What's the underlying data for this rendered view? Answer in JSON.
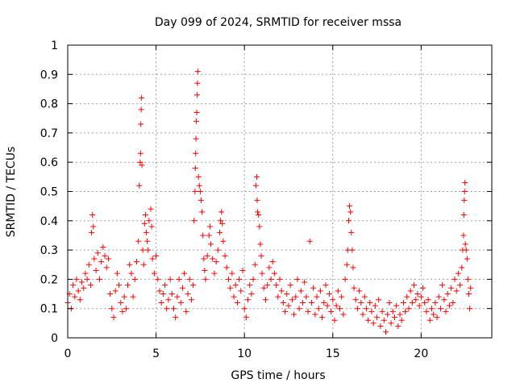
{
  "chart_data": {
    "type": "scatter",
    "title": "Day 099 of 2024, SRMTID for receiver mssa",
    "xlabel": "GPS time / hours",
    "ylabel": "SRMTID / TECUs",
    "xlim": [
      0,
      24
    ],
    "ylim": [
      0,
      1
    ],
    "xticks": [
      0,
      5,
      10,
      15,
      20
    ],
    "xtick_labels": [
      "0",
      "5",
      "10",
      "15",
      "20"
    ],
    "yticks": [
      0,
      0.1,
      0.2,
      0.3,
      0.4,
      0.5,
      0.6,
      0.7,
      0.8,
      0.9,
      1
    ],
    "ytick_labels": [
      "0",
      "0.1",
      "0.2",
      "0.3",
      "0.4",
      "0.5",
      "0.6",
      "0.7",
      "0.8",
      "0.9",
      "1"
    ],
    "grid": true,
    "marker": "+",
    "color": "#ff0000",
    "series": [
      {
        "name": "SRMTID",
        "points": [
          [
            0.0,
            0.12
          ],
          [
            0.1,
            0.15
          ],
          [
            0.2,
            0.1
          ],
          [
            0.3,
            0.18
          ],
          [
            0.4,
            0.14
          ],
          [
            0.5,
            0.2
          ],
          [
            0.6,
            0.16
          ],
          [
            0.7,
            0.13
          ],
          [
            0.8,
            0.19
          ],
          [
            0.9,
            0.17
          ],
          [
            1.0,
            0.22
          ],
          [
            1.1,
            0.2
          ],
          [
            1.2,
            0.25
          ],
          [
            1.3,
            0.18
          ],
          [
            1.35,
            0.36
          ],
          [
            1.4,
            0.42
          ],
          [
            1.45,
            0.38
          ],
          [
            1.5,
            0.27
          ],
          [
            1.6,
            0.23
          ],
          [
            1.7,
            0.29
          ],
          [
            1.8,
            0.2
          ],
          [
            1.9,
            0.26
          ],
          [
            2.0,
            0.31
          ],
          [
            2.1,
            0.28
          ],
          [
            2.2,
            0.24
          ],
          [
            2.3,
            0.27
          ],
          [
            2.4,
            0.15
          ],
          [
            2.5,
            0.1
          ],
          [
            2.6,
            0.07
          ],
          [
            2.7,
            0.16
          ],
          [
            2.8,
            0.22
          ],
          [
            2.9,
            0.18
          ],
          [
            3.0,
            0.12
          ],
          [
            3.1,
            0.09
          ],
          [
            3.2,
            0.14
          ],
          [
            3.3,
            0.1
          ],
          [
            3.4,
            0.18
          ],
          [
            3.5,
            0.25
          ],
          [
            3.6,
            0.22
          ],
          [
            3.7,
            0.14
          ],
          [
            3.8,
            0.2
          ],
          [
            3.9,
            0.26
          ],
          [
            4.0,
            0.33
          ],
          [
            4.05,
            0.52
          ],
          [
            4.1,
            0.6
          ],
          [
            4.12,
            0.63
          ],
          [
            4.14,
            0.73
          ],
          [
            4.16,
            0.78
          ],
          [
            4.18,
            0.82
          ],
          [
            4.2,
            0.59
          ],
          [
            4.25,
            0.3
          ],
          [
            4.3,
            0.25
          ],
          [
            4.35,
            0.39
          ],
          [
            4.4,
            0.42
          ],
          [
            4.45,
            0.36
          ],
          [
            4.5,
            0.33
          ],
          [
            4.55,
            0.3
          ],
          [
            4.6,
            0.4
          ],
          [
            4.7,
            0.44
          ],
          [
            4.75,
            0.38
          ],
          [
            4.8,
            0.27
          ],
          [
            4.9,
            0.22
          ],
          [
            5.0,
            0.28
          ],
          [
            5.1,
            0.2
          ],
          [
            5.2,
            0.16
          ],
          [
            5.3,
            0.12
          ],
          [
            5.4,
            0.15
          ],
          [
            5.5,
            0.18
          ],
          [
            5.6,
            0.1
          ],
          [
            5.7,
            0.13
          ],
          [
            5.8,
            0.2
          ],
          [
            5.9,
            0.15
          ],
          [
            6.0,
            0.1
          ],
          [
            6.1,
            0.07
          ],
          [
            6.2,
            0.14
          ],
          [
            6.3,
            0.2
          ],
          [
            6.4,
            0.12
          ],
          [
            6.5,
            0.17
          ],
          [
            6.6,
            0.22
          ],
          [
            6.7,
            0.09
          ],
          [
            6.8,
            0.15
          ],
          [
            6.9,
            0.2
          ],
          [
            7.0,
            0.13
          ],
          [
            7.1,
            0.18
          ],
          [
            7.15,
            0.4
          ],
          [
            7.2,
            0.5
          ],
          [
            7.22,
            0.58
          ],
          [
            7.24,
            0.63
          ],
          [
            7.26,
            0.68
          ],
          [
            7.28,
            0.74
          ],
          [
            7.3,
            0.77
          ],
          [
            7.32,
            0.83
          ],
          [
            7.34,
            0.87
          ],
          [
            7.36,
            0.91
          ],
          [
            7.4,
            0.55
          ],
          [
            7.45,
            0.52
          ],
          [
            7.5,
            0.5
          ],
          [
            7.55,
            0.47
          ],
          [
            7.6,
            0.43
          ],
          [
            7.65,
            0.35
          ],
          [
            7.7,
            0.27
          ],
          [
            7.75,
            0.23
          ],
          [
            7.8,
            0.2
          ],
          [
            7.9,
            0.28
          ],
          [
            8.0,
            0.35
          ],
          [
            8.05,
            0.38
          ],
          [
            8.1,
            0.32
          ],
          [
            8.2,
            0.27
          ],
          [
            8.3,
            0.22
          ],
          [
            8.4,
            0.26
          ],
          [
            8.5,
            0.3
          ],
          [
            8.6,
            0.36
          ],
          [
            8.65,
            0.4
          ],
          [
            8.7,
            0.43
          ],
          [
            8.75,
            0.39
          ],
          [
            8.8,
            0.33
          ],
          [
            8.9,
            0.28
          ],
          [
            9.0,
            0.24
          ],
          [
            9.1,
            0.2
          ],
          [
            9.2,
            0.17
          ],
          [
            9.3,
            0.22
          ],
          [
            9.4,
            0.14
          ],
          [
            9.5,
            0.18
          ],
          [
            9.6,
            0.12
          ],
          [
            9.7,
            0.2
          ],
          [
            9.8,
            0.16
          ],
          [
            9.9,
            0.23
          ],
          [
            10.0,
            0.1
          ],
          [
            10.1,
            0.07
          ],
          [
            10.2,
            0.13
          ],
          [
            10.3,
            0.18
          ],
          [
            10.4,
            0.15
          ],
          [
            10.5,
            0.2
          ],
          [
            10.6,
            0.25
          ],
          [
            10.65,
            0.52
          ],
          [
            10.7,
            0.55
          ],
          [
            10.72,
            0.47
          ],
          [
            10.75,
            0.43
          ],
          [
            10.8,
            0.42
          ],
          [
            10.85,
            0.38
          ],
          [
            10.9,
            0.32
          ],
          [
            10.95,
            0.28
          ],
          [
            11.0,
            0.22
          ],
          [
            11.1,
            0.17
          ],
          [
            11.2,
            0.13
          ],
          [
            11.3,
            0.18
          ],
          [
            11.4,
            0.24
          ],
          [
            11.5,
            0.2
          ],
          [
            11.6,
            0.26
          ],
          [
            11.7,
            0.22
          ],
          [
            11.8,
            0.18
          ],
          [
            11.9,
            0.14
          ],
          [
            12.0,
            0.2
          ],
          [
            12.1,
            0.16
          ],
          [
            12.2,
            0.12
          ],
          [
            12.3,
            0.09
          ],
          [
            12.4,
            0.15
          ],
          [
            12.5,
            0.11
          ],
          [
            12.6,
            0.18
          ],
          [
            12.7,
            0.13
          ],
          [
            12.8,
            0.08
          ],
          [
            12.9,
            0.14
          ],
          [
            13.0,
            0.2
          ],
          [
            13.1,
            0.1
          ],
          [
            13.2,
            0.16
          ],
          [
            13.3,
            0.12
          ],
          [
            13.4,
            0.19
          ],
          [
            13.5,
            0.14
          ],
          [
            13.6,
            0.09
          ],
          [
            13.7,
            0.33
          ],
          [
            13.8,
            0.12
          ],
          [
            13.9,
            0.17
          ],
          [
            14.0,
            0.08
          ],
          [
            14.1,
            0.14
          ],
          [
            14.2,
            0.1
          ],
          [
            14.3,
            0.16
          ],
          [
            14.4,
            0.07
          ],
          [
            14.5,
            0.12
          ],
          [
            14.6,
            0.18
          ],
          [
            14.7,
            0.11
          ],
          [
            14.8,
            0.15
          ],
          [
            14.9,
            0.09
          ],
          [
            15.0,
            0.13
          ],
          [
            15.1,
            0.06
          ],
          [
            15.2,
            0.11
          ],
          [
            15.3,
            0.16
          ],
          [
            15.4,
            0.1
          ],
          [
            15.5,
            0.14
          ],
          [
            15.6,
            0.08
          ],
          [
            15.7,
            0.2
          ],
          [
            15.8,
            0.25
          ],
          [
            15.85,
            0.3
          ],
          [
            15.9,
            0.4
          ],
          [
            15.95,
            0.45
          ],
          [
            16.0,
            0.43
          ],
          [
            16.05,
            0.36
          ],
          [
            16.1,
            0.3
          ],
          [
            16.15,
            0.24
          ],
          [
            16.2,
            0.17
          ],
          [
            16.3,
            0.13
          ],
          [
            16.4,
            0.1
          ],
          [
            16.5,
            0.16
          ],
          [
            16.6,
            0.12
          ],
          [
            16.7,
            0.08
          ],
          [
            16.8,
            0.14
          ],
          [
            16.9,
            0.1
          ],
          [
            17.0,
            0.06
          ],
          [
            17.1,
            0.12
          ],
          [
            17.2,
            0.09
          ],
          [
            17.3,
            0.05
          ],
          [
            17.4,
            0.11
          ],
          [
            17.5,
            0.07
          ],
          [
            17.6,
            0.13
          ],
          [
            17.7,
            0.04
          ],
          [
            17.8,
            0.09
          ],
          [
            17.9,
            0.06
          ],
          [
            18.0,
            0.02
          ],
          [
            18.1,
            0.08
          ],
          [
            18.2,
            0.12
          ],
          [
            18.3,
            0.05
          ],
          [
            18.4,
            0.09
          ],
          [
            18.5,
            0.07
          ],
          [
            18.6,
            0.11
          ],
          [
            18.7,
            0.04
          ],
          [
            18.8,
            0.08
          ],
          [
            18.9,
            0.06
          ],
          [
            19.0,
            0.12
          ],
          [
            19.1,
            0.09
          ],
          [
            19.2,
            0.14
          ],
          [
            19.3,
            0.1
          ],
          [
            19.4,
            0.16
          ],
          [
            19.5,
            0.12
          ],
          [
            19.6,
            0.18
          ],
          [
            19.7,
            0.13
          ],
          [
            19.8,
            0.15
          ],
          [
            19.9,
            0.11
          ],
          [
            20.0,
            0.14
          ],
          [
            20.1,
            0.17
          ],
          [
            20.2,
            0.12
          ],
          [
            20.3,
            0.09
          ],
          [
            20.4,
            0.13
          ],
          [
            20.5,
            0.06
          ],
          [
            20.6,
            0.1
          ],
          [
            20.7,
            0.08
          ],
          [
            20.8,
            0.12
          ],
          [
            20.9,
            0.07
          ],
          [
            21.0,
            0.14
          ],
          [
            21.1,
            0.1
          ],
          [
            21.2,
            0.18
          ],
          [
            21.3,
            0.13
          ],
          [
            21.4,
            0.09
          ],
          [
            21.5,
            0.15
          ],
          [
            21.6,
            0.11
          ],
          [
            21.7,
            0.17
          ],
          [
            21.8,
            0.12
          ],
          [
            21.9,
            0.2
          ],
          [
            22.0,
            0.16
          ],
          [
            22.1,
            0.22
          ],
          [
            22.2,
            0.18
          ],
          [
            22.3,
            0.24
          ],
          [
            22.35,
            0.3
          ],
          [
            22.4,
            0.35
          ],
          [
            22.42,
            0.42
          ],
          [
            22.44,
            0.47
          ],
          [
            22.46,
            0.5
          ],
          [
            22.48,
            0.53
          ],
          [
            22.5,
            0.32
          ],
          [
            22.55,
            0.3
          ],
          [
            22.6,
            0.27
          ],
          [
            22.65,
            0.2
          ],
          [
            22.7,
            0.15
          ],
          [
            22.75,
            0.1
          ],
          [
            22.8,
            0.17
          ]
        ]
      }
    ]
  }
}
